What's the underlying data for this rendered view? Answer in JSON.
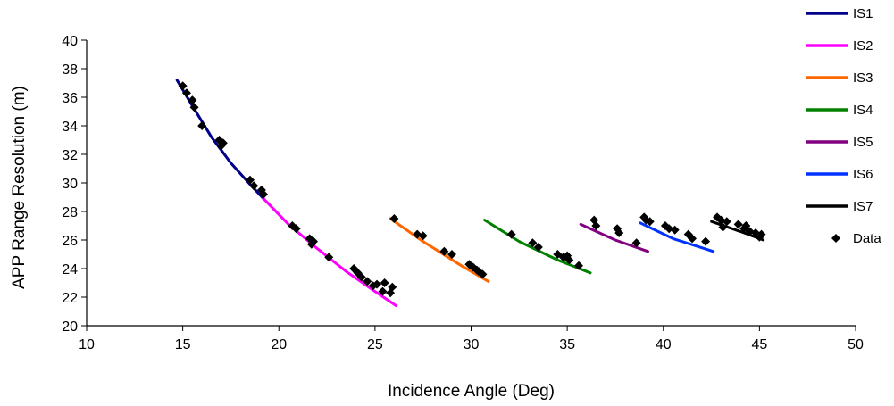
{
  "chart_data": {
    "type": "scatter",
    "xlabel": "Incidence Angle (Deg)",
    "ylabel": "APP Range Resolution (m)",
    "xlim": [
      10,
      50
    ],
    "ylim": [
      20,
      40
    ],
    "xticks": [
      10,
      15,
      20,
      25,
      30,
      35,
      40,
      45,
      50
    ],
    "yticks": [
      20,
      22,
      24,
      26,
      28,
      30,
      32,
      34,
      36,
      38,
      40
    ],
    "grid": false,
    "legend_position": "right",
    "series": [
      {
        "name": "IS1",
        "kind": "line",
        "color": "#00008b",
        "x": [
          14.7,
          15.5,
          16.5,
          17.5,
          18.5,
          19.2
        ],
        "y": [
          37.2,
          35.4,
          33.2,
          31.4,
          29.9,
          28.9
        ]
      },
      {
        "name": "IS2",
        "kind": "line",
        "color": "#ff00ff",
        "x": [
          19.2,
          20.5,
          22.0,
          23.5,
          25.0,
          26.1
        ],
        "y": [
          28.9,
          27.1,
          25.4,
          23.8,
          22.4,
          21.4
        ]
      },
      {
        "name": "IS3",
        "kind": "line",
        "color": "#ff6600",
        "x": [
          25.8,
          27.5,
          29.5,
          30.9
        ],
        "y": [
          27.5,
          25.9,
          24.2,
          23.1
        ]
      },
      {
        "name": "IS4",
        "kind": "line",
        "color": "#008000",
        "x": [
          30.7,
          32.5,
          34.5,
          36.2
        ],
        "y": [
          27.4,
          25.9,
          24.6,
          23.7
        ]
      },
      {
        "name": "IS5",
        "kind": "line",
        "color": "#800080",
        "x": [
          35.7,
          37.5,
          39.2
        ],
        "y": [
          27.1,
          26.0,
          25.2
        ]
      },
      {
        "name": "IS6",
        "kind": "line",
        "color": "#0033ff",
        "x": [
          38.8,
          40.5,
          42.6
        ],
        "y": [
          27.2,
          26.1,
          25.2
        ]
      },
      {
        "name": "IS7",
        "kind": "line",
        "color": "#000000",
        "x": [
          42.5,
          44.0,
          45.2
        ],
        "y": [
          27.3,
          26.6,
          26.0
        ]
      },
      {
        "name": "Data",
        "kind": "scatter",
        "color": "#000000",
        "x": [
          15.0,
          15.2,
          15.5,
          15.6,
          16.0,
          16.9,
          17.0,
          17.1,
          18.5,
          18.7,
          19.1,
          19.2,
          20.7,
          20.9,
          21.6,
          21.8,
          21.7,
          22.6,
          23.9,
          24.1,
          24.3,
          24.6,
          24.9,
          25.1,
          25.4,
          25.5,
          25.8,
          25.9,
          26.0,
          27.2,
          27.5,
          28.6,
          29.0,
          29.9,
          30.1,
          30.3,
          30.4,
          30.6,
          32.1,
          33.2,
          33.5,
          34.5,
          34.8,
          35.0,
          35.1,
          35.6,
          36.4,
          36.5,
          37.6,
          37.7,
          38.6,
          39.0,
          39.1,
          39.3,
          40.1,
          40.3,
          40.6,
          41.3,
          41.5,
          42.2,
          42.8,
          43.0,
          43.3,
          43.1,
          43.9,
          44.2,
          44.5,
          44.3,
          44.8,
          45.1,
          45.0
        ],
        "y": [
          36.8,
          36.3,
          35.8,
          35.3,
          34.0,
          33.0,
          32.6,
          32.8,
          30.2,
          29.8,
          29.5,
          29.2,
          27.0,
          26.8,
          26.1,
          25.9,
          25.7,
          24.8,
          24.0,
          23.7,
          23.4,
          23.1,
          22.8,
          22.9,
          22.4,
          23.0,
          22.3,
          22.7,
          27.5,
          26.4,
          26.3,
          25.2,
          25.0,
          24.3,
          24.1,
          23.9,
          23.8,
          23.6,
          26.4,
          25.8,
          25.5,
          25.0,
          24.8,
          24.9,
          24.6,
          24.2,
          27.4,
          27.0,
          26.8,
          26.5,
          25.8,
          27.6,
          27.4,
          27.3,
          27.0,
          26.8,
          26.7,
          26.4,
          26.1,
          25.9,
          27.6,
          27.4,
          27.3,
          26.9,
          27.1,
          26.8,
          26.6,
          27.0,
          26.5,
          26.4,
          26.2
        ]
      }
    ]
  }
}
